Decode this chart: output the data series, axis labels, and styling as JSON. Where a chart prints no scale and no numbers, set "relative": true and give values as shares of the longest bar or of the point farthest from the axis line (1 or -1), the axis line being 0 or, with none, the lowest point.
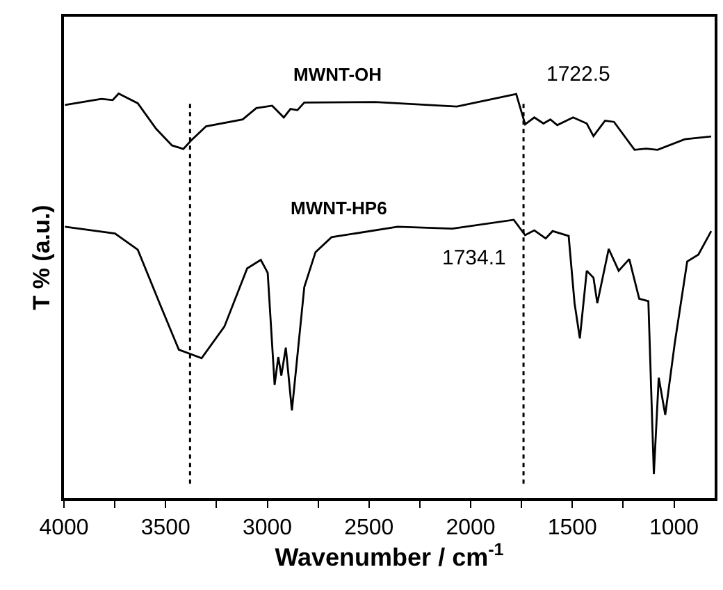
{
  "chart_data": {
    "type": "line",
    "relative": true,
    "xlabel": "Wavenumber / cm$^{-1}$",
    "ylabel": "T % (a.u.)",
    "xlim": [
      4000,
      800
    ],
    "xticks": [
      4000,
      {
        "value": 3750,
        "label": null
      },
      3500,
      {
        "value": 3250,
        "label": null
      },
      3000,
      {
        "value": 2750,
        "label": null
      },
      2500,
      {
        "value": 2250,
        "label": null
      },
      2000,
      {
        "value": 1750,
        "label": null
      },
      1500,
      {
        "value": 1250,
        "label": null
      },
      1000
    ],
    "legend": false,
    "marker": "none",
    "line_style": "solid",
    "series": [
      {
        "name": "MWNT-OH",
        "color": "#000000",
        "x": [
          3995,
          3816,
          3760,
          3731,
          3637,
          3547,
          3469,
          3413,
          3375,
          3301,
          3121,
          3054,
          2976,
          2919,
          2886,
          2852,
          2818,
          2471,
          2068,
          1776,
          1732,
          1687,
          1642,
          1608,
          1574,
          1496,
          1429,
          1396,
          1339,
          1295,
          1194,
          1137,
          1081,
          947,
          817
        ],
        "values": [
          0.972,
          0.987,
          0.984,
          1.0,
          0.976,
          0.913,
          0.872,
          0.863,
          0.884,
          0.919,
          0.936,
          0.964,
          0.97,
          0.941,
          0.962,
          0.959,
          0.978,
          0.979,
          0.968,
          0.999,
          0.924,
          0.941,
          0.926,
          0.936,
          0.922,
          0.941,
          0.926,
          0.895,
          0.933,
          0.93,
          0.861,
          0.864,
          0.861,
          0.887,
          0.894
        ]
      },
      {
        "name": "MWNT-HP6",
        "color": "#000000",
        "x": [
          3995,
          3749,
          3637,
          3525,
          3435,
          3323,
          3211,
          3099,
          3032,
          2998,
          2964,
          2946,
          2931,
          2909,
          2879,
          2818,
          2763,
          2684,
          2359,
          2090,
          1788,
          1732,
          1687,
          1631,
          1597,
          1518,
          1489,
          1463,
          1429,
          1396,
          1377,
          1321,
          1272,
          1220,
          1171,
          1126,
          1099,
          1075,
          1043,
          996,
          935,
          880,
          817
        ],
        "values": [
          0.671,
          0.654,
          0.614,
          0.476,
          0.367,
          0.346,
          0.424,
          0.568,
          0.589,
          0.557,
          0.28,
          0.349,
          0.303,
          0.372,
          0.217,
          0.522,
          0.608,
          0.645,
          0.671,
          0.666,
          0.688,
          0.65,
          0.662,
          0.642,
          0.66,
          0.648,
          0.482,
          0.395,
          0.562,
          0.545,
          0.482,
          0.616,
          0.562,
          0.591,
          0.493,
          0.487,
          0.06,
          0.298,
          0.206,
          0.384,
          0.585,
          0.602,
          0.66
        ]
      }
    ],
    "ref_lines": [
      {
        "axis": "x",
        "value": 3380,
        "color": "#000000",
        "line_style": "dotted"
      },
      {
        "axis": "x",
        "value": 1740,
        "color": "#000000",
        "line_style": "dotted"
      }
    ],
    "annotations": [
      "1722.5",
      "1734.1"
    ]
  }
}
